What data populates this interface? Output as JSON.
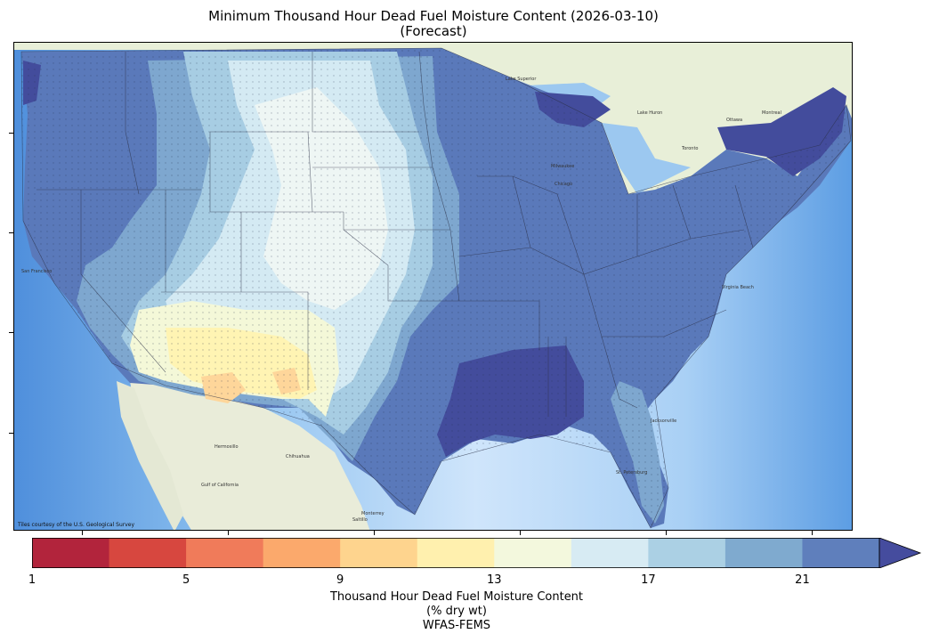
{
  "title_line1": "Minimum Thousand Hour Dead Fuel Moisture Content (2026-03-10)",
  "title_line2": "(Forecast)",
  "attribution": "Tiles courtesy of the U.S. Geological Survey",
  "colorbar": {
    "min": 1,
    "max": 23,
    "extend": "max",
    "tick_labels": [
      "1",
      "5",
      "9",
      "13",
      "17",
      "21"
    ],
    "tick_values": [
      1,
      5,
      9,
      13,
      17,
      21
    ],
    "colors": [
      "#b2243c",
      "#d7473f",
      "#f07b5a",
      "#fba96c",
      "#fed48e",
      "#fff0ae",
      "#f3f8dd",
      "#d7ebf3",
      "#abd0e4",
      "#7faacf",
      "#5f7fbc",
      "#454c9e"
    ],
    "label_line1": "Thousand Hour Dead Fuel Moisture Content",
    "label_line2": "(% dry wt)",
    "label_line3": "WFAS-FEMS"
  },
  "map_labels": {
    "san_francisco": "San Francisco",
    "hermosillo": "Hermosillo",
    "chihuahua": "Chihuahua",
    "monterrey": "Monterrey",
    "saltillo": "Saltillo",
    "milwaukee": "Milwaukee",
    "chicago": "Chicago",
    "toronto": "Toronto",
    "ottawa": "Ottawa",
    "montreal": "Montreal",
    "jacksonville": "Jacksonville",
    "st_petersburg": "St. Petersburg",
    "virginia_beach": "Virginia Beach",
    "lake_superior": "Lake Superior",
    "lake_huron": "Lake Huron",
    "gulf_of_california": "Gulf of California"
  }
}
